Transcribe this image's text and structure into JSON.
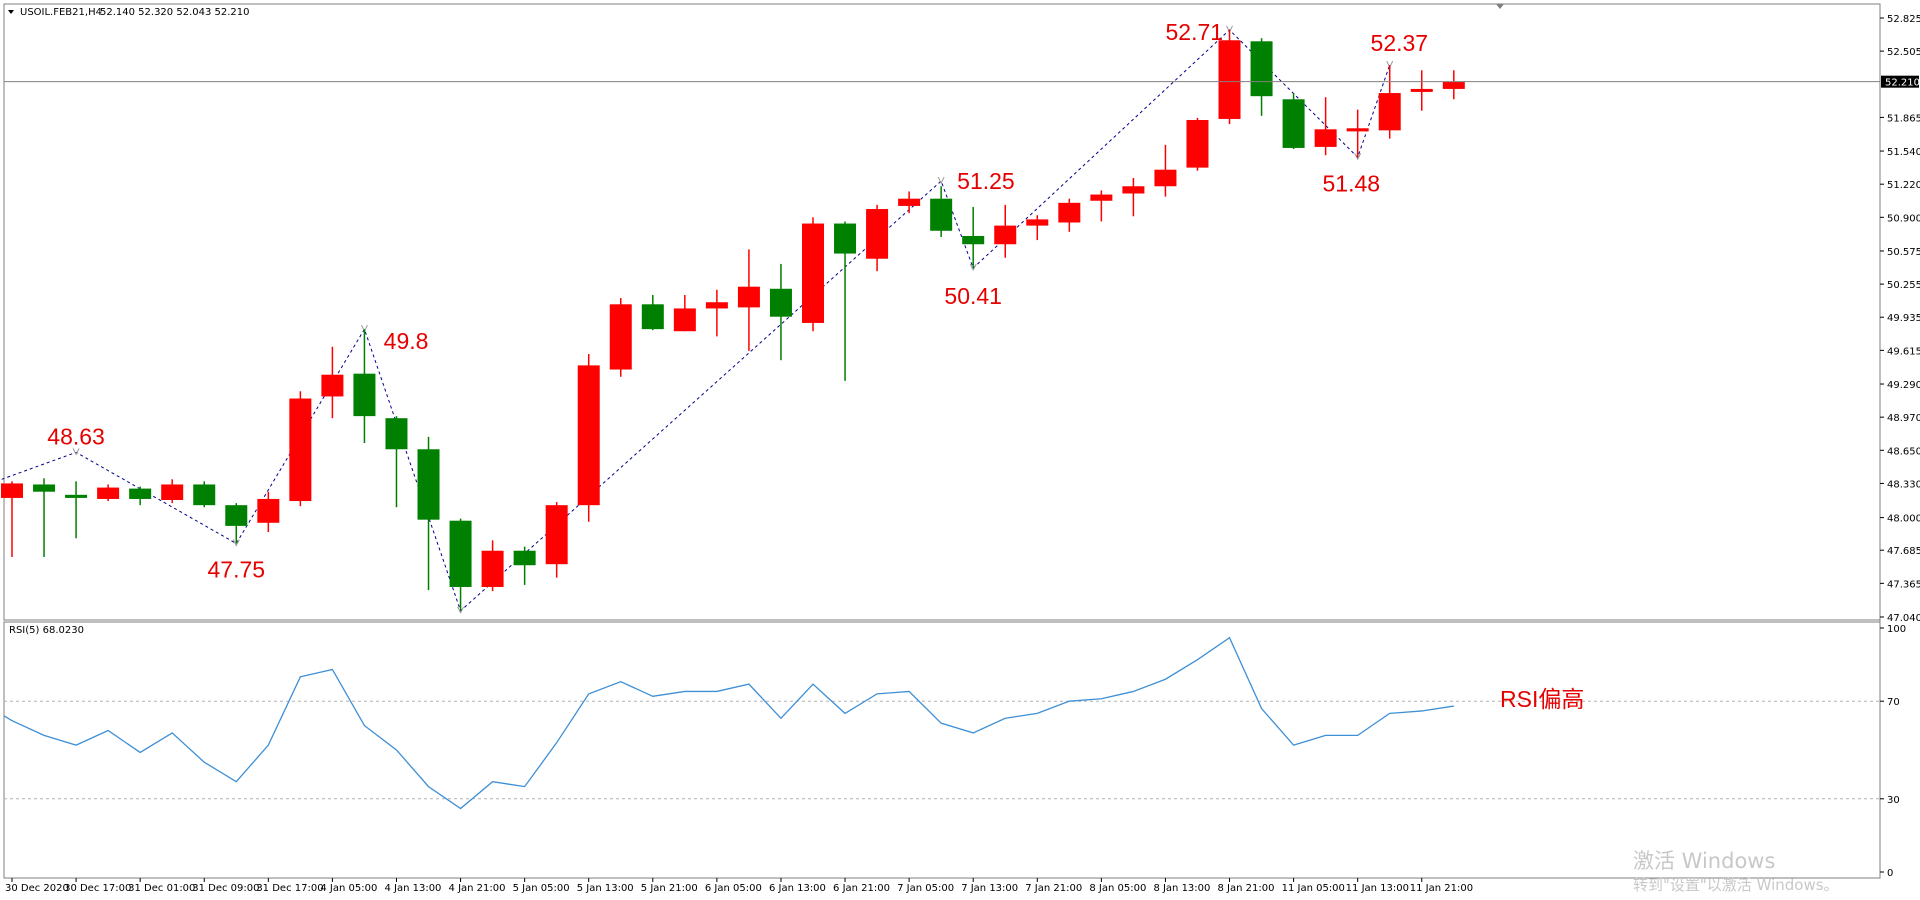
{
  "header": {
    "symbol": "USOIL.FEB21,H4",
    "ohlc": "52.140 52.320 52.043 52.210"
  },
  "rsi_header": "RSI(5) 68.0230",
  "price_axis": {
    "ticks": [
      "52.825",
      "52.505",
      "52.210",
      "51.865",
      "51.540",
      "51.220",
      "50.900",
      "50.575",
      "50.255",
      "49.935",
      "49.615",
      "49.290",
      "48.970",
      "48.650",
      "48.330",
      "48.000",
      "47.685",
      "47.365",
      "47.040"
    ],
    "current_label": "52.210"
  },
  "rsi_axis": {
    "ticks": [
      "100",
      "70",
      "30",
      "0"
    ]
  },
  "time_axis": {
    "ticks": [
      "30 Dec 2020",
      "30 Dec 17:00",
      "31 Dec 01:00",
      "31 Dec 09:00",
      "31 Dec 17:00",
      "4 Jan 05:00",
      "4 Jan 13:00",
      "4 Jan 21:00",
      "5 Jan 05:00",
      "5 Jan 13:00",
      "5 Jan 21:00",
      "6 Jan 05:00",
      "6 Jan 13:00",
      "6 Jan 21:00",
      "7 Jan 05:00",
      "7 Jan 13:00",
      "7 Jan 21:00",
      "8 Jan 05:00",
      "8 Jan 13:00",
      "8 Jan 21:00",
      "11 Jan 05:00",
      "11 Jan 13:00",
      "11 Jan 21:00"
    ]
  },
  "rsi_annotation": "RSI偏高",
  "watermark": {
    "line1": "激活 Windows",
    "line2": "转到\"设置\"以激活 Windows。"
  },
  "colors": {
    "bull": "#ff0000",
    "bear": "#008000",
    "rsi_line": "#3d8fd6",
    "zigzag": "#00008b",
    "label": "#e60000"
  },
  "chart_data": {
    "type": "candlestick",
    "symbol": "USOIL.FEB21",
    "timeframe": "H4",
    "ylim": [
      47.04,
      52.825
    ],
    "candles": [
      {
        "o": 48.19,
        "h": 48.35,
        "l": 47.62,
        "c": 48.33
      },
      {
        "o": 48.32,
        "h": 48.38,
        "l": 47.62,
        "c": 48.25
      },
      {
        "o": 48.22,
        "h": 48.35,
        "l": 47.8,
        "c": 48.19
      },
      {
        "o": 48.18,
        "h": 48.32,
        "l": 48.16,
        "c": 48.29
      },
      {
        "o": 48.28,
        "h": 48.3,
        "l": 48.12,
        "c": 48.18
      },
      {
        "o": 48.17,
        "h": 48.37,
        "l": 48.14,
        "c": 48.32
      },
      {
        "o": 48.32,
        "h": 48.35,
        "l": 48.1,
        "c": 48.12
      },
      {
        "o": 48.12,
        "h": 48.14,
        "l": 47.75,
        "c": 47.92
      },
      {
        "o": 47.95,
        "h": 48.25,
        "l": 47.86,
        "c": 48.18
      },
      {
        "o": 48.16,
        "h": 49.22,
        "l": 48.11,
        "c": 49.15
      },
      {
        "o": 49.17,
        "h": 49.65,
        "l": 48.96,
        "c": 49.38
      },
      {
        "o": 49.39,
        "h": 49.82,
        "l": 48.72,
        "c": 48.98
      },
      {
        "o": 48.96,
        "h": 48.98,
        "l": 48.1,
        "c": 48.66
      },
      {
        "o": 48.66,
        "h": 48.78,
        "l": 47.3,
        "c": 47.98
      },
      {
        "o": 47.97,
        "h": 47.99,
        "l": 47.1,
        "c": 47.33
      },
      {
        "o": 47.33,
        "h": 47.78,
        "l": 47.29,
        "c": 47.68
      },
      {
        "o": 47.68,
        "h": 47.72,
        "l": 47.35,
        "c": 47.54
      },
      {
        "o": 47.55,
        "h": 48.15,
        "l": 47.42,
        "c": 48.12
      },
      {
        "o": 48.12,
        "h": 49.58,
        "l": 47.96,
        "c": 49.47
      },
      {
        "o": 49.43,
        "h": 50.12,
        "l": 49.36,
        "c": 50.06
      },
      {
        "o": 50.06,
        "h": 50.15,
        "l": 49.81,
        "c": 49.82
      },
      {
        "o": 49.8,
        "h": 50.15,
        "l": 49.8,
        "c": 50.02
      },
      {
        "o": 50.02,
        "h": 50.2,
        "l": 49.75,
        "c": 50.08
      },
      {
        "o": 50.03,
        "h": 50.59,
        "l": 49.61,
        "c": 50.23
      },
      {
        "o": 50.21,
        "h": 50.45,
        "l": 49.52,
        "c": 49.94
      },
      {
        "o": 49.88,
        "h": 50.9,
        "l": 49.8,
        "c": 50.84
      },
      {
        "o": 50.84,
        "h": 50.86,
        "l": 49.32,
        "c": 50.55
      },
      {
        "o": 50.5,
        "h": 51.02,
        "l": 50.38,
        "c": 50.98
      },
      {
        "o": 51.01,
        "h": 51.15,
        "l": 50.94,
        "c": 51.08
      },
      {
        "o": 51.08,
        "h": 51.2,
        "l": 50.71,
        "c": 50.77
      },
      {
        "o": 50.72,
        "h": 51.0,
        "l": 50.41,
        "c": 50.64
      },
      {
        "o": 50.64,
        "h": 51.02,
        "l": 50.51,
        "c": 50.82
      },
      {
        "o": 50.82,
        "h": 50.92,
        "l": 50.68,
        "c": 50.88
      },
      {
        "o": 50.85,
        "h": 51.08,
        "l": 50.76,
        "c": 51.04
      },
      {
        "o": 51.06,
        "h": 51.16,
        "l": 50.86,
        "c": 51.12
      },
      {
        "o": 51.13,
        "h": 51.28,
        "l": 50.91,
        "c": 51.2
      },
      {
        "o": 51.2,
        "h": 51.6,
        "l": 51.1,
        "c": 51.36
      },
      {
        "o": 51.38,
        "h": 51.86,
        "l": 51.35,
        "c": 51.84
      },
      {
        "o": 51.85,
        "h": 52.71,
        "l": 51.8,
        "c": 52.61
      },
      {
        "o": 52.6,
        "h": 52.63,
        "l": 51.88,
        "c": 52.07
      },
      {
        "o": 52.04,
        "h": 52.1,
        "l": 51.56,
        "c": 51.57
      },
      {
        "o": 51.58,
        "h": 52.06,
        "l": 51.5,
        "c": 51.75
      },
      {
        "o": 51.73,
        "h": 51.94,
        "l": 51.48,
        "c": 51.76
      },
      {
        "o": 51.74,
        "h": 52.37,
        "l": 51.66,
        "c": 52.1
      },
      {
        "o": 52.12,
        "h": 52.32,
        "l": 51.93,
        "c": 52.14
      },
      {
        "o": 52.14,
        "h": 52.32,
        "l": 52.04,
        "c": 52.21
      }
    ],
    "swing_labels": [
      {
        "text": "48.63",
        "value": 48.63
      },
      {
        "text": "47.75",
        "value": 47.75
      },
      {
        "text": "49.8",
        "value": 49.8
      },
      {
        "text": "51.25",
        "value": 51.25
      },
      {
        "text": "50.41",
        "value": 50.41
      },
      {
        "text": "52.71",
        "value": 52.71
      },
      {
        "text": "51.48",
        "value": 51.48
      },
      {
        "text": "52.37",
        "value": 52.37
      }
    ],
    "current_price": 52.21,
    "rsi": {
      "period": 5,
      "current": 68.023,
      "levels": [
        70,
        30
      ],
      "ylim": [
        0,
        100
      ],
      "values": [
        62,
        56,
        52,
        58,
        49,
        57,
        45,
        37,
        52,
        80,
        83,
        60,
        50,
        35,
        26,
        37,
        35,
        53,
        73,
        78,
        72,
        74,
        74,
        77,
        63,
        77,
        65,
        73,
        74,
        61,
        57,
        63,
        65,
        70,
        71,
        74,
        79,
        87,
        96,
        67,
        52,
        56,
        56,
        65,
        66,
        68
      ]
    }
  }
}
